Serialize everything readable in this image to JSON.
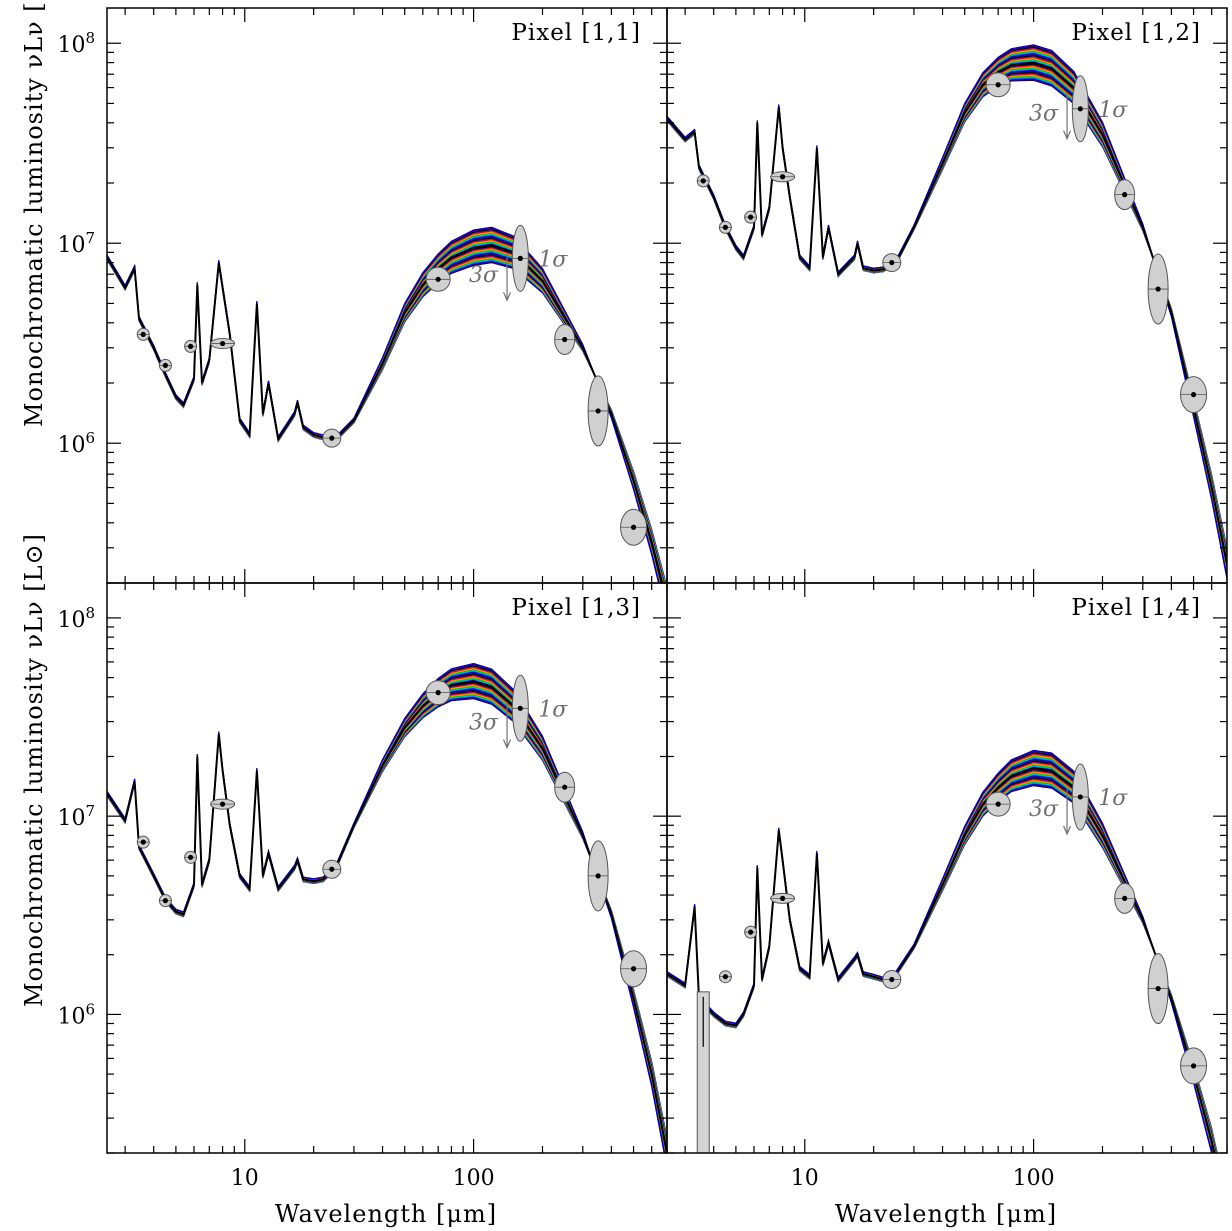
{
  "figure": {
    "xlabel": "Wavelength [μm]",
    "ylabel": "Monochromatic luminosity νLν [L⊙]",
    "sigma_labels": {
      "lower": "3σ",
      "upper": "1σ"
    }
  },
  "chart_data": [
    {
      "type": "line",
      "title": "Pixel [1,1]",
      "xscale": "log",
      "yscale": "log",
      "xlim": [
        2.5,
        700
      ],
      "ylim": [
        200000,
        150000000
      ],
      "xticks": [
        10,
        100
      ],
      "xtick_labels": [
        "10",
        "100"
      ],
      "yticks": [
        1000000,
        10000000,
        100000000
      ],
      "ytick_labels": [
        "10^6",
        "10^7",
        "10^8"
      ],
      "model": {
        "x": [
          2.5,
          3.0,
          3.3,
          3.45,
          4.0,
          4.5,
          5.0,
          5.4,
          6.0,
          6.2,
          6.5,
          7.0,
          7.7,
          8.0,
          8.6,
          9.5,
          10.5,
          11.3,
          12.0,
          12.7,
          14.0,
          16.5,
          17.0,
          18.0,
          20.0,
          22.0,
          25.0,
          30.0,
          40.0,
          50.0,
          60.0,
          70.0,
          80.0,
          100.0,
          120.0,
          150.0,
          200.0,
          300.0,
          400.0,
          500.0,
          600.0,
          700.0
        ],
        "y": [
          8500000,
          6000000,
          7500000,
          4200000,
          3000000,
          2200000,
          1700000,
          1550000,
          2100000,
          6200000,
          2000000,
          2600000,
          8000000,
          6000000,
          3500000,
          1300000,
          1100000,
          5000000,
          1400000,
          2000000,
          1050000,
          1400000,
          1600000,
          1200000,
          1100000,
          1070000,
          1050000,
          1300000,
          2500000,
          4500000,
          6200000,
          7500000,
          8500000,
          9500000,
          9800000,
          9000000,
          6500000,
          3000000,
          1400000,
          650000,
          320000,
          160000
        ]
      },
      "photometry": [
        {
          "x": 3.6,
          "y": 3500000
        },
        {
          "x": 4.5,
          "y": 2450000
        },
        {
          "x": 5.8,
          "y": 3050000
        },
        {
          "x": 8.0,
          "y": 3150000
        },
        {
          "x": 24.0,
          "y": 1060000
        },
        {
          "x": 70.0,
          "y": 6600000
        },
        {
          "x": 160.0,
          "y": 8400000
        },
        {
          "x": 250.0,
          "y": 3300000
        },
        {
          "x": 350.0,
          "y": 1450000
        },
        {
          "x": 500.0,
          "y": 380000
        }
      ],
      "upper_limit": {
        "x": 140.0,
        "y": 7000000
      }
    },
    {
      "type": "line",
      "title": "Pixel [1,2]",
      "xscale": "log",
      "yscale": "log",
      "xlim": [
        2.5,
        700
      ],
      "ylim": [
        200000,
        150000000
      ],
      "xticks": [
        10,
        100
      ],
      "xtick_labels": [
        "10",
        "100"
      ],
      "yticks": [
        1000000,
        10000000,
        100000000
      ],
      "ytick_labels": [
        "10^6",
        "10^7",
        "10^8"
      ],
      "model": {
        "x": [
          2.5,
          3.0,
          3.3,
          3.45,
          4.0,
          4.5,
          5.0,
          5.4,
          6.0,
          6.2,
          6.5,
          7.0,
          7.7,
          8.0,
          8.6,
          9.5,
          10.5,
          11.3,
          12.0,
          12.7,
          14.0,
          16.5,
          17.0,
          18.0,
          20.0,
          22.0,
          25.0,
          30.0,
          40.0,
          50.0,
          60.0,
          70.0,
          80.0,
          100.0,
          120.0,
          150.0,
          200.0,
          300.0,
          400.0,
          500.0,
          600.0,
          700.0
        ],
        "y": [
          42000000,
          33000000,
          36000000,
          24000000,
          17000000,
          12000000,
          9500000,
          8500000,
          12000000,
          40000000,
          11000000,
          15000000,
          48000000,
          30000000,
          17000000,
          8500000,
          7500000,
          30000000,
          8500000,
          12000000,
          7000000,
          8500000,
          10000000,
          7500000,
          7300000,
          7400000,
          8000000,
          12000000,
          25000000,
          45000000,
          62000000,
          72000000,
          78000000,
          80000000,
          75000000,
          60000000,
          35000000,
          12000000,
          4500000,
          1500000,
          600000,
          250000
        ]
      },
      "photometry": [
        {
          "x": 3.6,
          "y": 20500000
        },
        {
          "x": 4.5,
          "y": 12000000
        },
        {
          "x": 5.8,
          "y": 13500000
        },
        {
          "x": 8.0,
          "y": 21500000
        },
        {
          "x": 24.0,
          "y": 8000000
        },
        {
          "x": 70.0,
          "y": 62000000
        },
        {
          "x": 160.0,
          "y": 47000000
        },
        {
          "x": 250.0,
          "y": 17500000
        },
        {
          "x": 350.0,
          "y": 5900000
        },
        {
          "x": 500.0,
          "y": 1750000
        }
      ],
      "upper_limit": {
        "x": 140.0,
        "y": 45000000
      }
    },
    {
      "type": "line",
      "title": "Pixel [1,3]",
      "xscale": "log",
      "yscale": "log",
      "xlim": [
        2.5,
        700
      ],
      "ylim": [
        200000,
        150000000
      ],
      "xticks": [
        10,
        100
      ],
      "xtick_labels": [
        "10",
        "100"
      ],
      "yticks": [
        1000000,
        10000000,
        100000000
      ],
      "ytick_labels": [
        "10^6",
        "10^7",
        "10^8"
      ],
      "model": {
        "x": [
          2.5,
          3.0,
          3.3,
          3.45,
          4.0,
          4.5,
          5.0,
          5.4,
          6.0,
          6.2,
          6.5,
          7.0,
          7.7,
          8.0,
          8.6,
          9.5,
          10.5,
          11.3,
          12.0,
          12.7,
          14.0,
          16.5,
          17.0,
          18.0,
          20.0,
          22.0,
          25.0,
          30.0,
          40.0,
          50.0,
          60.0,
          70.0,
          80.0,
          100.0,
          120.0,
          150.0,
          200.0,
          300.0,
          400.0,
          500.0,
          600.0,
          700.0
        ],
        "y": [
          13000000,
          9500000,
          15000000,
          7000000,
          5000000,
          3800000,
          3300000,
          3200000,
          4500000,
          20000000,
          4500000,
          6000000,
          26000000,
          17000000,
          9000000,
          5000000,
          4300000,
          17000000,
          5000000,
          6500000,
          4300000,
          5500000,
          6000000,
          4800000,
          4700000,
          4800000,
          5500000,
          9000000,
          18000000,
          28000000,
          36000000,
          42000000,
          46000000,
          48000000,
          45000000,
          36000000,
          22000000,
          8000000,
          3200000,
          1200000,
          500000,
          200000
        ]
      },
      "photometry": [
        {
          "x": 3.6,
          "y": 7400000
        },
        {
          "x": 4.5,
          "y": 3750000
        },
        {
          "x": 5.8,
          "y": 6200000
        },
        {
          "x": 8.0,
          "y": 11500000
        },
        {
          "x": 24.0,
          "y": 5400000
        },
        {
          "x": 70.0,
          "y": 42000000
        },
        {
          "x": 160.0,
          "y": 35000000
        },
        {
          "x": 250.0,
          "y": 14000000
        },
        {
          "x": 350.0,
          "y": 5000000
        },
        {
          "x": 500.0,
          "y": 1700000
        }
      ],
      "upper_limit": {
        "x": 140.0,
        "y": 30000000
      }
    },
    {
      "type": "line",
      "title": "Pixel [1,4]",
      "xscale": "log",
      "yscale": "log",
      "xlim": [
        2.5,
        700
      ],
      "ylim": [
        200000,
        150000000
      ],
      "xticks": [
        10,
        100
      ],
      "xtick_labels": [
        "10",
        "100"
      ],
      "yticks": [
        1000000,
        10000000,
        100000000
      ],
      "ytick_labels": [
        "10^6",
        "10^7",
        "10^8"
      ],
      "model": {
        "x": [
          2.5,
          3.0,
          3.3,
          3.45,
          4.0,
          4.5,
          5.0,
          5.4,
          6.0,
          6.2,
          6.5,
          7.0,
          7.7,
          8.0,
          8.6,
          9.5,
          10.5,
          11.3,
          12.0,
          12.7,
          14.0,
          16.5,
          17.0,
          18.0,
          20.0,
          22.0,
          25.0,
          30.0,
          40.0,
          50.0,
          60.0,
          70.0,
          80.0,
          100.0,
          120.0,
          150.0,
          200.0,
          300.0,
          400.0,
          500.0,
          600.0,
          700.0
        ],
        "y": [
          1600000,
          1400000,
          3500000,
          1200000,
          1000000,
          900000,
          880000,
          1000000,
          1400000,
          5500000,
          1500000,
          2200000,
          8500000,
          6000000,
          3000000,
          1700000,
          1550000,
          6500000,
          1800000,
          2300000,
          1500000,
          1900000,
          2000000,
          1600000,
          1550000,
          1500000,
          1600000,
          2200000,
          4500000,
          8000000,
          11500000,
          14000000,
          16000000,
          17500000,
          17000000,
          14000000,
          8000000,
          3000000,
          1200000,
          500000,
          230000,
          100000
        ]
      },
      "photometry": [
        {
          "x": 4.5,
          "y": 1550000
        },
        {
          "x": 5.8,
          "y": 2600000
        },
        {
          "x": 8.0,
          "y": 3850000
        },
        {
          "x": 24.0,
          "y": 1500000
        },
        {
          "x": 70.0,
          "y": 11500000
        },
        {
          "x": 160.0,
          "y": 12500000
        },
        {
          "x": 250.0,
          "y": 3850000
        },
        {
          "x": 350.0,
          "y": 1350000
        },
        {
          "x": 500.0,
          "y": 550000
        }
      ],
      "upper_limit": {
        "x": 140.0,
        "y": 11000000
      },
      "error_bar": {
        "x": 3.6,
        "low": 200000,
        "high": 1300000
      }
    }
  ]
}
